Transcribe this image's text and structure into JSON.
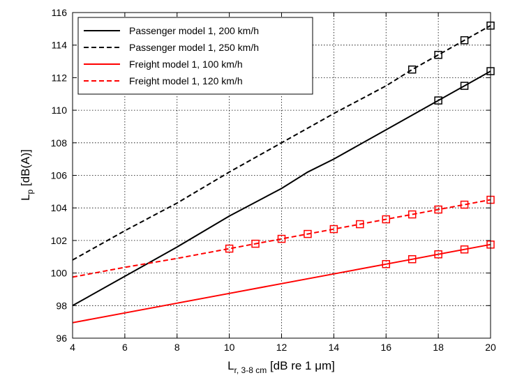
{
  "chart_data": {
    "type": "line",
    "xlabel": "L",
    "xlabel_sub": "r, 3-8 cm",
    "xlabel_rest": " [dB re 1 μm]",
    "ylabel": "L",
    "ylabel_sub": "p",
    "ylabel_rest": " [dB(A)]",
    "xlim": [
      4,
      20
    ],
    "ylim": [
      96,
      116
    ],
    "xticks": [
      4,
      6,
      8,
      10,
      12,
      14,
      16,
      18,
      20
    ],
    "yticks": [
      96,
      98,
      100,
      102,
      104,
      106,
      108,
      110,
      112,
      114,
      116
    ],
    "grid": true,
    "legend_position": "top-left",
    "series": [
      {
        "name": "Passenger model 1, 200 km/h",
        "color": "#000000",
        "dash": false,
        "x": [
          4,
          6,
          8,
          10,
          12,
          13,
          14,
          16,
          18,
          19,
          20
        ],
        "y": [
          98.0,
          99.8,
          101.6,
          103.5,
          105.2,
          106.2,
          107.0,
          108.8,
          110.6,
          111.5,
          112.4
        ],
        "marker_x": [
          18,
          19,
          20
        ],
        "marker_y": [
          110.6,
          111.5,
          112.4
        ]
      },
      {
        "name": "Passenger model 1, 250 km/h",
        "color": "#000000",
        "dash": true,
        "x": [
          4,
          6,
          8,
          10,
          12,
          14,
          16,
          17,
          18,
          19,
          20
        ],
        "y": [
          100.8,
          102.6,
          104.3,
          106.2,
          108.0,
          109.8,
          111.5,
          112.5,
          113.4,
          114.3,
          115.2
        ],
        "marker_x": [
          17,
          18,
          19,
          20
        ],
        "marker_y": [
          112.5,
          113.4,
          114.3,
          115.2
        ]
      },
      {
        "name": "Freight model 1, 100 km/h",
        "color": "#ff0000",
        "dash": false,
        "x": [
          4,
          6,
          8,
          10,
          12,
          14,
          16,
          17,
          18,
          19,
          20
        ],
        "y": [
          96.95,
          97.55,
          98.15,
          98.75,
          99.35,
          99.95,
          100.55,
          100.85,
          101.15,
          101.45,
          101.75
        ],
        "marker_x": [
          16,
          17,
          18,
          19,
          20
        ],
        "marker_y": [
          100.55,
          100.85,
          101.15,
          101.45,
          101.75
        ]
      },
      {
        "name": "Freight model 1, 120 km/h",
        "color": "#ff0000",
        "dash": true,
        "x": [
          4,
          6,
          8,
          10,
          11,
          12,
          13,
          14,
          15,
          16,
          17,
          18,
          19,
          20
        ],
        "y": [
          99.75,
          100.35,
          100.9,
          101.5,
          101.8,
          102.1,
          102.4,
          102.7,
          103.0,
          103.3,
          103.6,
          103.9,
          104.2,
          104.5
        ],
        "marker_x": [
          10,
          11,
          12,
          13,
          14,
          15,
          16,
          17,
          18,
          19,
          20
        ],
        "marker_y": [
          101.5,
          101.8,
          102.1,
          102.4,
          102.7,
          103.0,
          103.3,
          103.6,
          103.9,
          104.2,
          104.5
        ]
      }
    ]
  }
}
